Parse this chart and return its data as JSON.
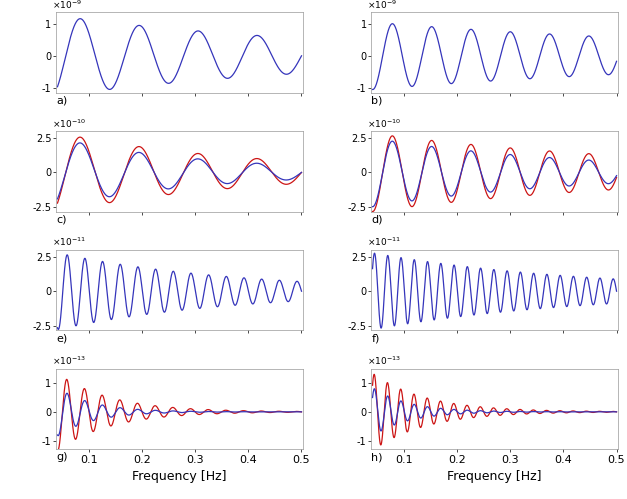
{
  "freq_min": 0.04,
  "freq_max": 0.5,
  "n_points": 4000,
  "subplot_labels": [
    "a)",
    "b)",
    "c)",
    "d)",
    "e)",
    "f)",
    "g)",
    "h)"
  ],
  "blue_color": "#3535bb",
  "red_color": "#cc1515",
  "bg_color": "#ffffff",
  "rows": [
    {
      "exponent": -9,
      "ylim": [
        -1.15,
        1.35
      ],
      "yticks": [
        -1.0,
        0.0,
        1.0
      ],
      "left": {
        "show_red": false,
        "blue_amp": 1.25,
        "blue_freq": 9.0,
        "blue_decay": 1.8,
        "blue_phase": 1.57,
        "red_amp": 1.25,
        "red_freq": 9.0,
        "red_decay": 1.8,
        "red_phase": 1.57
      },
      "right": {
        "show_red": false,
        "blue_amp": 1.05,
        "blue_freq": 13.5,
        "blue_decay": 1.3,
        "blue_phase": -0.3,
        "red_amp": 1.05,
        "red_freq": 13.5,
        "red_decay": 1.3,
        "red_phase": -0.3
      }
    },
    {
      "exponent": -10,
      "ylim": [
        -2.85,
        3.0
      ],
      "yticks": [
        -2.5,
        0.0,
        2.5
      ],
      "left": {
        "show_red": true,
        "blue_amp": 2.5,
        "blue_freq": 9.0,
        "blue_decay": 3.5,
        "blue_phase": 1.57,
        "red_amp": 2.9,
        "red_freq": 9.0,
        "red_decay": 2.8,
        "red_phase": 1.57
      },
      "right": {
        "show_red": true,
        "blue_amp": 2.5,
        "blue_freq": 13.5,
        "blue_decay": 2.5,
        "blue_phase": -0.3,
        "red_amp": 2.85,
        "red_freq": 13.5,
        "red_decay": 1.8,
        "red_phase": -0.3
      }
    },
    {
      "exponent": -11,
      "ylim": [
        -2.85,
        3.0
      ],
      "yticks": [
        -2.5,
        0.0,
        2.5
      ],
      "left": {
        "show_red": false,
        "blue_amp": 2.8,
        "blue_freq": 30.0,
        "blue_decay": 3.0,
        "blue_phase": 1.57,
        "red_amp": 2.8,
        "red_freq": 30.0,
        "red_decay": 3.0,
        "red_phase": 1.57
      },
      "right": {
        "show_red": false,
        "blue_amp": 2.8,
        "blue_freq": 40.0,
        "blue_decay": 2.5,
        "blue_phase": 1.57,
        "red_amp": 2.8,
        "red_freq": 40.0,
        "red_decay": 2.5,
        "red_phase": 1.57
      }
    },
    {
      "exponent": -13,
      "ylim": [
        -1.3,
        1.5
      ],
      "yticks": [
        -1.0,
        0.0,
        1.0
      ],
      "left": {
        "show_red": true,
        "blue_amp": 0.85,
        "blue_freq": 30.0,
        "blue_decay": 15.0,
        "blue_phase": 1.57,
        "red_amp": 1.35,
        "red_freq": 30.0,
        "red_decay": 10.0,
        "red_phase": 1.7
      },
      "right": {
        "show_red": true,
        "blue_amp": 0.85,
        "blue_freq": 40.0,
        "blue_decay": 15.0,
        "blue_phase": 1.57,
        "red_amp": 1.35,
        "red_freq": 40.0,
        "red_decay": 10.0,
        "red_phase": 1.7
      }
    }
  ]
}
